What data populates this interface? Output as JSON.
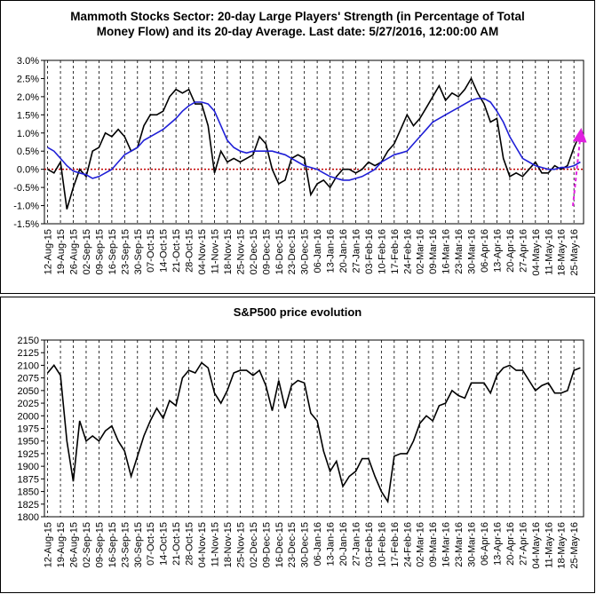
{
  "chart_data": [
    {
      "type": "line",
      "title": "Mammoth Stocks Sector: 20-day Large Players' Strength (in Percentage of Total Money Flow) and its 20-day Average. Last date: 5/27/2016, 12:00:00 AM",
      "categories": [
        "12-Aug-15",
        null,
        "19-Aug-15",
        null,
        "26-Aug-15",
        null,
        "02-Sep-15",
        null,
        "09-Sep-15",
        null,
        "16-Sep-15",
        null,
        "23-Sep-15",
        null,
        "30-Sep-15",
        null,
        "07-Oct-15",
        null,
        "14-Oct-15",
        null,
        "21-Oct-15",
        null,
        "28-Oct-15",
        null,
        "04-Nov-15",
        null,
        "11-Nov-15",
        null,
        "18-Nov-15",
        null,
        "25-Nov-15",
        null,
        "02-Dec-15",
        null,
        "09-Dec-15",
        null,
        "16-Dec-15",
        null,
        "23-Dec-15",
        null,
        "30-Dec-15",
        null,
        "06-Jan-16",
        null,
        "13-Jan-16",
        null,
        "20-Jan-16",
        null,
        "27-Jan-16",
        null,
        "03-Feb-16",
        null,
        "10-Feb-16",
        null,
        "17-Feb-16",
        null,
        "24-Feb-16",
        null,
        "02-Mar-16",
        null,
        "09-Mar-16",
        null,
        "16-Mar-16",
        null,
        "23-Mar-16",
        null,
        "30-Mar-16",
        null,
        "06-Apr-16",
        null,
        "13-Apr-16",
        null,
        "20-Apr-16",
        null,
        "27-Apr-16",
        null,
        "04-May-16",
        null,
        "11-May-16",
        null,
        "18-May-16",
        null,
        "25-May-16",
        null
      ],
      "series": [
        {
          "color": "#000000",
          "values": [
            0.0,
            -0.1,
            0.2,
            -1.1,
            -0.5,
            0.0,
            -0.2,
            0.5,
            0.6,
            1.0,
            0.9,
            1.1,
            0.9,
            0.5,
            0.6,
            1.2,
            1.5,
            1.5,
            1.6,
            2.0,
            2.2,
            2.1,
            2.2,
            1.8,
            1.8,
            1.2,
            -0.1,
            0.5,
            0.2,
            0.3,
            0.2,
            0.3,
            0.4,
            0.9,
            0.7,
            0.0,
            -0.4,
            -0.3,
            0.3,
            0.4,
            0.3,
            -0.7,
            -0.4,
            -0.3,
            -0.5,
            -0.2,
            0.0,
            0.0,
            -0.1,
            0.0,
            0.2,
            0.1,
            0.2,
            0.5,
            0.7,
            1.1,
            1.5,
            1.2,
            1.4,
            1.7,
            2.0,
            2.3,
            1.9,
            2.1,
            2.0,
            2.2,
            2.5,
            2.1,
            1.8,
            1.3,
            1.4,
            0.3,
            -0.2,
            -0.1,
            -0.2,
            0.0,
            0.2,
            -0.1,
            -0.1,
            0.1,
            0.0,
            0.1,
            0.6,
            1.0
          ]
        },
        {
          "color": "#1f1fd6",
          "values": [
            0.6,
            0.5,
            0.3,
            0.1,
            -0.05,
            -0.1,
            -0.15,
            -0.25,
            -0.2,
            -0.1,
            0.0,
            0.2,
            0.4,
            0.5,
            0.6,
            0.8,
            0.9,
            1.0,
            1.1,
            1.25,
            1.4,
            1.6,
            1.75,
            1.85,
            1.85,
            1.8,
            1.6,
            1.2,
            0.8,
            0.6,
            0.5,
            0.45,
            0.5,
            0.5,
            0.5,
            0.5,
            0.45,
            0.4,
            0.3,
            0.2,
            0.1,
            0.05,
            0.0,
            -0.1,
            -0.2,
            -0.25,
            -0.3,
            -0.3,
            -0.25,
            -0.2,
            -0.1,
            0.0,
            0.2,
            0.3,
            0.4,
            0.45,
            0.5,
            0.7,
            0.9,
            1.1,
            1.3,
            1.4,
            1.5,
            1.6,
            1.7,
            1.8,
            1.9,
            1.95,
            1.95,
            1.85,
            1.6,
            1.3,
            0.9,
            0.6,
            0.3,
            0.2,
            0.1,
            0.05,
            0.0,
            0.0,
            0.05,
            0.05,
            0.1,
            0.2
          ]
        }
      ],
      "ylim": [
        -1.5,
        3.0
      ],
      "yticks": [
        {
          "value": -1.5,
          "label": "-1.5%"
        },
        {
          "value": -1.0,
          "label": "-1.0%"
        },
        {
          "value": -0.5,
          "label": "-0.5%"
        },
        {
          "value": 0.0,
          "label": "0.0%"
        },
        {
          "value": 0.5,
          "label": "0.5%"
        },
        {
          "value": 1.0,
          "label": "1.0%"
        },
        {
          "value": 1.5,
          "label": "1.5%"
        },
        {
          "value": 2.0,
          "label": "2.0%"
        },
        {
          "value": 2.5,
          "label": "2.5%"
        },
        {
          "value": 3.0,
          "label": "3.0%"
        }
      ],
      "grid": true
    },
    {
      "type": "line",
      "title": "S&P500 price evolution",
      "categories": [
        "12-Aug-15",
        null,
        "19-Aug-15",
        null,
        "26-Aug-15",
        null,
        "02-Sep-15",
        null,
        "09-Sep-15",
        null,
        "16-Sep-15",
        null,
        "23-Sep-15",
        null,
        "30-Sep-15",
        null,
        "07-Oct-15",
        null,
        "14-Oct-15",
        null,
        "21-Oct-15",
        null,
        "28-Oct-15",
        null,
        "04-Nov-15",
        null,
        "11-Nov-15",
        null,
        "18-Nov-15",
        null,
        "25-Nov-15",
        null,
        "02-Dec-15",
        null,
        "09-Dec-15",
        null,
        "16-Dec-15",
        null,
        "23-Dec-15",
        null,
        "30-Dec-15",
        null,
        "06-Jan-16",
        null,
        "13-Jan-16",
        null,
        "20-Jan-16",
        null,
        "27-Jan-16",
        null,
        "03-Feb-16",
        null,
        "10-Feb-16",
        null,
        "17-Feb-16",
        null,
        "24-Feb-16",
        null,
        "02-Mar-16",
        null,
        "09-Mar-16",
        null,
        "16-Mar-16",
        null,
        "23-Mar-16",
        null,
        "30-Mar-16",
        null,
        "06-Apr-16",
        null,
        "13-Apr-16",
        null,
        "20-Apr-16",
        null,
        "27-Apr-16",
        null,
        "04-May-16",
        null,
        "11-May-16",
        null,
        "18-May-16",
        null,
        "25-May-16",
        null
      ],
      "series": [
        {
          "color": "#000000",
          "values": [
            2085,
            2100,
            2080,
            1950,
            1870,
            1990,
            1950,
            1960,
            1950,
            1970,
            1980,
            1950,
            1930,
            1880,
            1920,
            1960,
            1990,
            2015,
            1995,
            2030,
            2020,
            2075,
            2090,
            2085,
            2105,
            2095,
            2045,
            2025,
            2050,
            2085,
            2090,
            2090,
            2080,
            2090,
            2060,
            2010,
            2070,
            2015,
            2060,
            2070,
            2065,
            2005,
            1990,
            1930,
            1890,
            1910,
            1860,
            1880,
            1890,
            1915,
            1915,
            1880,
            1850,
            1830,
            1920,
            1925,
            1925,
            1950,
            1985,
            2000,
            1990,
            2020,
            2025,
            2050,
            2040,
            2035,
            2065,
            2065,
            2065,
            2045,
            2080,
            2095,
            2100,
            2090,
            2090,
            2070,
            2050,
            2060,
            2065,
            2045,
            2045,
            2050,
            2090,
            2095
          ]
        }
      ],
      "ylim": [
        1800,
        2150
      ],
      "yticks": [
        1800,
        1825,
        1850,
        1875,
        1900,
        1925,
        1950,
        1975,
        2000,
        2025,
        2050,
        2075,
        2100,
        2125,
        2150
      ],
      "grid": true
    }
  ]
}
